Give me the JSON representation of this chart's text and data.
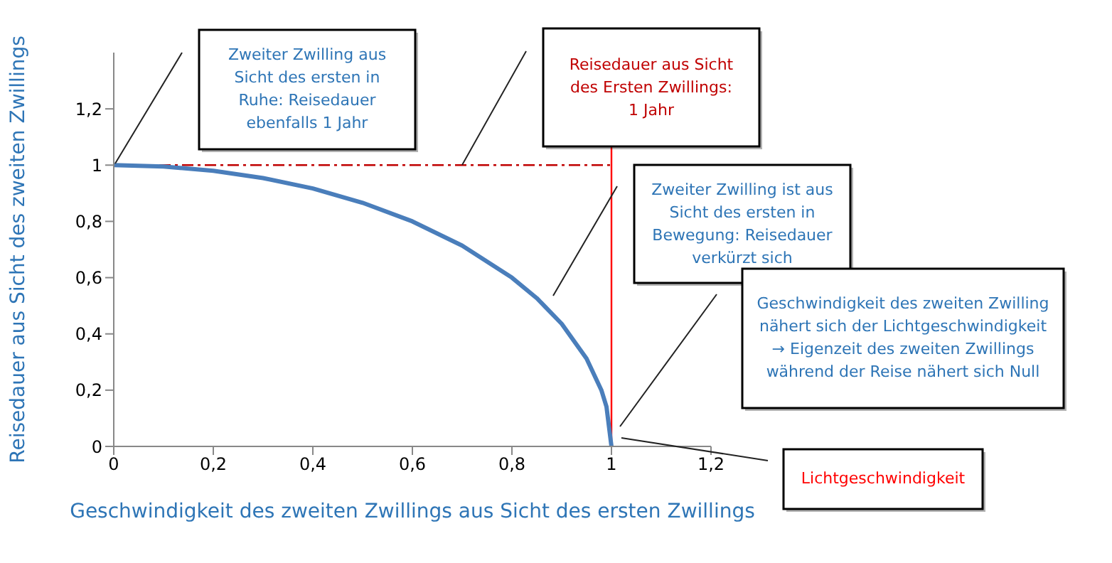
{
  "chart_data": {
    "type": "line",
    "xlabel": "Geschwindigkeit des zweiten Zwillings aus Sicht des ersten Zwillings",
    "ylabel": "Reisedauer aus Sicht des zweiten Zwillings",
    "xlim": [
      0,
      1.2
    ],
    "ylim": [
      0,
      1.4
    ],
    "xticks": [
      0,
      {
        "value": 0.2,
        "label": "0,2"
      },
      {
        "value": 0.4,
        "label": "0,4"
      },
      {
        "value": 0.6,
        "label": "0,6"
      },
      {
        "value": 0.8,
        "label": "0,8"
      },
      1,
      {
        "value": 1.2,
        "label": "1,2"
      }
    ],
    "yticks": [
      0,
      {
        "value": 0.2,
        "label": "0,2"
      },
      {
        "value": 0.4,
        "label": "0,4"
      },
      {
        "value": 0.6,
        "label": "0,6"
      },
      {
        "value": 0.8,
        "label": "0,8"
      },
      1,
      {
        "value": 1.2,
        "label": "1,2"
      }
    ],
    "series": [
      {
        "type": "line",
        "color": "#c00000",
        "line_style": "dashed",
        "x": [
          0,
          1
        ],
        "values": [
          1,
          1
        ]
      },
      {
        "type": "line",
        "color": "#ff0000",
        "line_style": "solid",
        "x": [
          1,
          1
        ],
        "values": [
          0,
          1.07
        ]
      },
      {
        "type": "line",
        "color": "#4a7ebb",
        "line_style": "solid",
        "x": [
          0,
          0.1,
          0.2,
          0.3,
          0.4,
          0.5,
          0.6,
          0.7,
          0.8,
          0.85,
          0.9,
          0.95,
          0.98,
          0.99,
          1
        ],
        "values": [
          1,
          0.995,
          0.98,
          0.954,
          0.917,
          0.866,
          0.8,
          0.714,
          0.6,
          0.527,
          0.436,
          0.312,
          0.199,
          0.141,
          0
        ]
      }
    ],
    "annotations": [
      "Zweiter Zwilling aus Sicht des ersten in Ruhe: Reisedauer ebenfalls 1 Jahr",
      "Reisedauer aus Sicht des Ersten Zwillings: 1 Jahr",
      "Zweiter Zwilling ist aus Sicht des ersten in Bewegung: Reisedauer verkürzt sich",
      "Geschwindigkeit des zweiten Zwilling nähert sich der Lichtgeschwindigkeit → Eigenzeit des zweiten Zwillings während der Reise nähert sich Null",
      "Lichtgeschwindigkeit"
    ]
  }
}
